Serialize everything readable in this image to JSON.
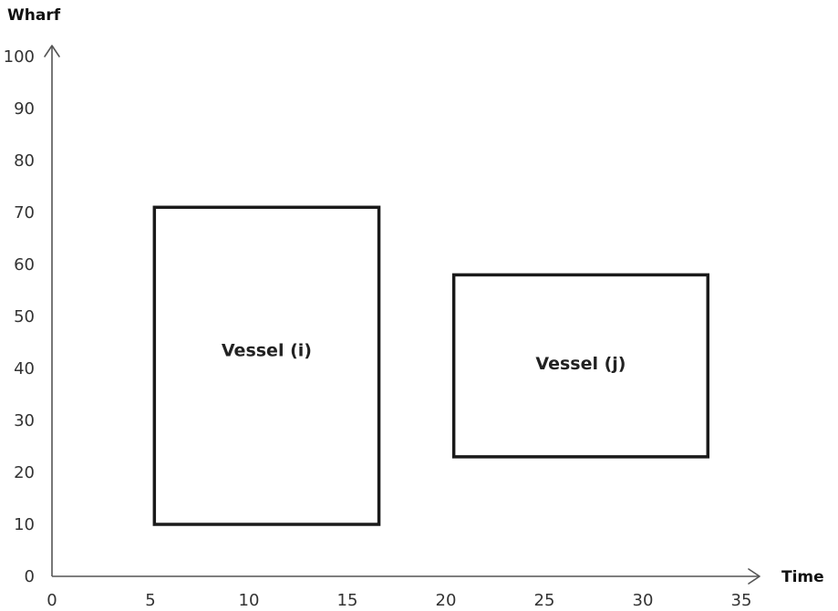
{
  "axes": {
    "x_title": "Time",
    "y_title": "Wharf",
    "x_range": [
      0,
      35
    ],
    "y_range": [
      0,
      100
    ],
    "x_ticks": [
      "0",
      "5",
      "10",
      "15",
      "20",
      "25",
      "30",
      "35"
    ],
    "y_ticks": [
      "0",
      "10",
      "20",
      "30",
      "40",
      "50",
      "60",
      "70",
      "80",
      "90",
      "100"
    ]
  },
  "vessels": [
    {
      "label": "Vessel (i)",
      "time_start": 5.2,
      "time_end": 16.6,
      "wharf_start": 10,
      "wharf_end": 71
    },
    {
      "label": "Vessel (j)",
      "time_start": 20.4,
      "time_end": 33.3,
      "wharf_start": 23,
      "wharf_end": 58
    }
  ],
  "colors": {
    "axis": "#555555",
    "rect_stroke": "#1a1a1a",
    "text": "#333333"
  }
}
